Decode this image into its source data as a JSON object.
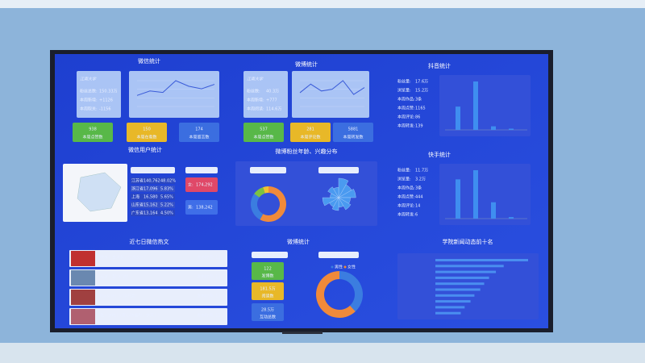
{
  "wechat": {
    "title": "微信统计",
    "logo": "江南大学",
    "stats": [
      {
        "label": "粉丝总数:",
        "value": "150.33万"
      },
      {
        "label": "本周新增:",
        "value": "+1126"
      },
      {
        "label": "本周取关:",
        "value": "-1156"
      }
    ],
    "trend": [
      30,
      42,
      38,
      70,
      55,
      48,
      60
    ],
    "boxes": [
      {
        "value": "938",
        "label": "本周点赞数"
      },
      {
        "value": "150",
        "label": "本周在看数"
      },
      {
        "value": "174",
        "label": "本周留言数"
      }
    ]
  },
  "weibo": {
    "title": "微博统计",
    "logo": "江南大学",
    "stats": [
      {
        "label": "粉丝数:",
        "value": "40.3万"
      },
      {
        "label": "本周新增:",
        "value": "+777"
      },
      {
        "label": "本周阅读:",
        "value": "114.6万"
      }
    ],
    "trend": [
      40,
      65,
      45,
      50,
      75,
      35,
      55
    ],
    "boxes": [
      {
        "value": "537",
        "label": "本周点赞数"
      },
      {
        "value": "281",
        "label": "本周评论数"
      },
      {
        "value": "5881",
        "label": "本周转发数"
      }
    ]
  },
  "douyin": {
    "title": "抖音统计",
    "stats": [
      {
        "label": "粉丝量:",
        "value": "17.6万"
      },
      {
        "label": "浏览量:",
        "value": "15.2万"
      },
      {
        "label": "本周作品:",
        "value": "3条"
      },
      {
        "label": "本周点赞:",
        "value": "1165"
      },
      {
        "label": "本周评论:",
        "value": "86"
      },
      {
        "label": "本周转发:",
        "value": "139"
      }
    ],
    "bars": [
      560,
      1165,
      86,
      30
    ]
  },
  "kuaishou": {
    "title": "快手统计",
    "stats": [
      {
        "label": "粉丝量:",
        "value": "11.7万"
      },
      {
        "label": "浏览量:",
        "value": "3.2万"
      },
      {
        "label": "本周作品:",
        "value": "3条"
      },
      {
        "label": "本周点赞:",
        "value": "444"
      },
      {
        "label": "本周评论:",
        "value": "14"
      },
      {
        "label": "本周转发:",
        "value": "6"
      }
    ],
    "bars": [
      360,
      444,
      150,
      14
    ]
  },
  "wechat_users": {
    "title": "微信用户统计",
    "province_title": "粉丝省份分布",
    "provinces": [
      [
        "江苏省",
        "140,762",
        "48.02%"
      ],
      [
        "浙江省",
        "17,096",
        "5.83%"
      ],
      [
        "上海",
        "16,580",
        "5.65%"
      ],
      [
        "山东省",
        "15,162",
        "5.22%"
      ],
      [
        "广东省",
        "13,164",
        "4.50%"
      ]
    ],
    "gender_title": "粉丝性别分布",
    "gender": [
      {
        "label": "女:",
        "value": "174,292"
      },
      {
        "label": "男:",
        "value": "138,242"
      }
    ]
  },
  "weibo_fans": {
    "title": "微博粉丝年龄、兴趣分布",
    "age_title": "粉丝年龄分布",
    "age": [
      {
        "color": "#f08a3a",
        "value": 58
      },
      {
        "color": "#3b7de0",
        "value": 27
      },
      {
        "color": "#7cc242",
        "value": 10
      },
      {
        "color": "#f2c230",
        "value": 5
      }
    ],
    "interest_title": "粉丝兴趣分布",
    "interest": [
      90,
      70,
      80,
      55,
      65,
      45,
      60,
      50,
      75,
      40,
      58,
      48
    ]
  },
  "articles": {
    "title": "近七日微信热文",
    "items": [
      {
        "title": "榜样！金球奖，江南文+？",
        "date": "发布时间: 11-18"
      },
      {
        "title": "玩岁！超“X”的！",
        "date": "发布时间: 11-17"
      },
      {
        "title": "Passion！火热开篇！",
        "date": "发布时间: 11-16"
      },
      {
        "title": "我十岁啦！(有心动福利，快来！)",
        "date": "发布时间: 11-15"
      }
    ]
  },
  "weibo_posts": {
    "title": "微博统计",
    "data_title": "近7日平台博文数据",
    "boxes": [
      {
        "value": "122",
        "label": "发博数"
      },
      {
        "value": "181.5万",
        "label": "阅读数"
      },
      {
        "value": "28.5万",
        "label": "互动总数"
      }
    ],
    "gender_title": "粉丝性别分布",
    "gender": [
      {
        "name": "男性",
        "color": "#3b7de0",
        "value": 38
      },
      {
        "name": "女性",
        "color": "#f08a3a",
        "value": 62
      }
    ]
  },
  "news": {
    "title": "学院新闻动态前十名",
    "values": [
      95,
      70,
      62,
      55,
      50,
      46,
      40,
      36,
      30,
      26
    ]
  }
}
